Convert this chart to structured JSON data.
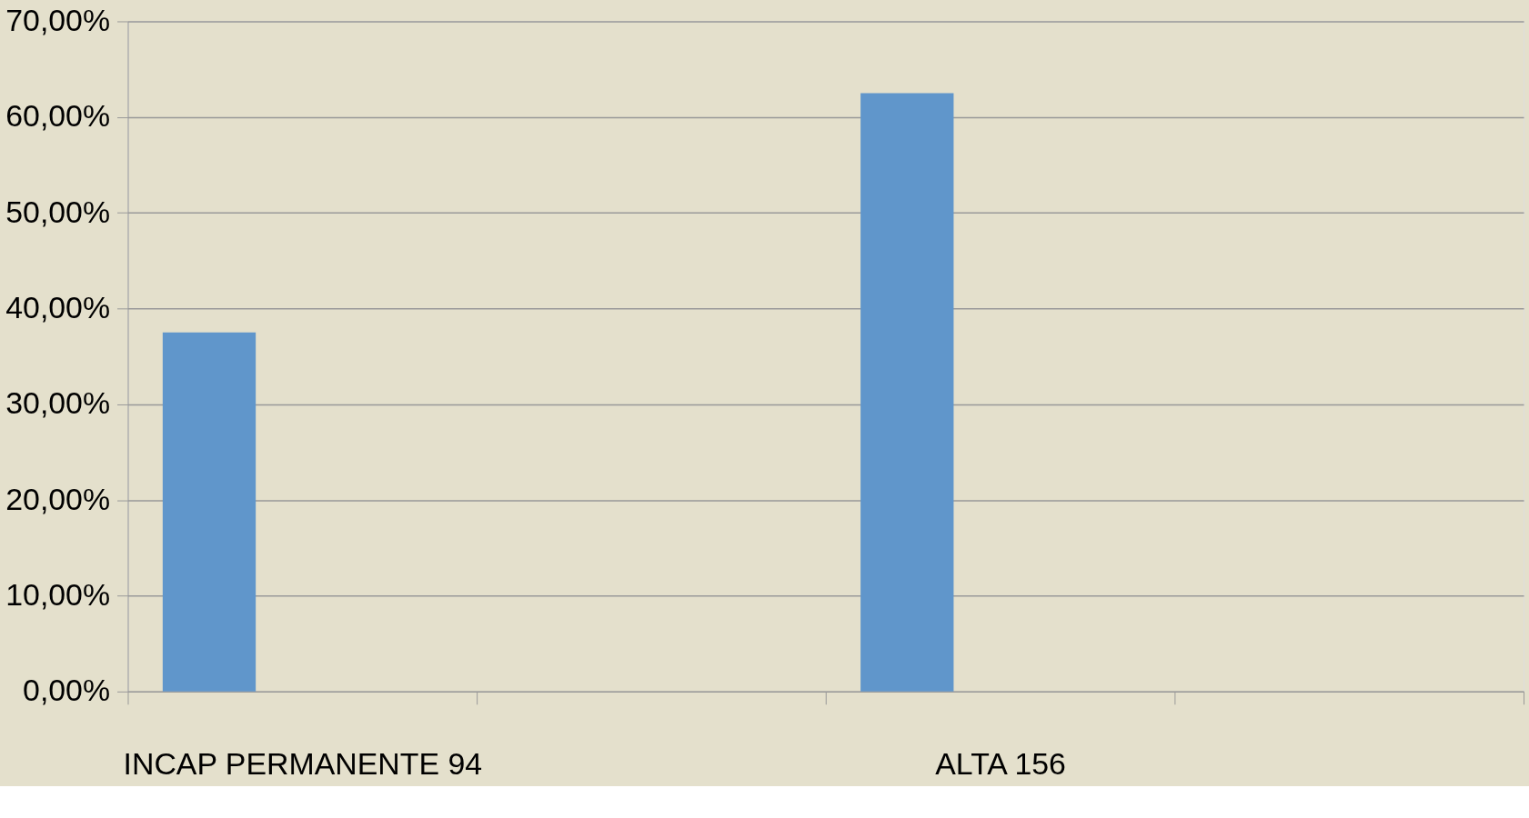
{
  "chart_data": {
    "type": "bar",
    "categories": [
      "INCAP PERMANENTE 94",
      null,
      "ALTA 156",
      null
    ],
    "series": [
      {
        "color": "#6096cb",
        "values": [
          37.5,
          null,
          62.5,
          null
        ]
      }
    ],
    "ylim": [
      0,
      70
    ],
    "yticks": [
      {
        "value": 0,
        "label": "0,00%"
      },
      {
        "value": 10,
        "label": "10,00%"
      },
      {
        "value": 20,
        "label": "20,00%"
      },
      {
        "value": 30,
        "label": "30,00%"
      },
      {
        "value": 40,
        "label": "40,00%"
      },
      {
        "value": 50,
        "label": "50,00%"
      },
      {
        "value": 60,
        "label": "60,00%"
      },
      {
        "value": 70,
        "label": "70,00%"
      }
    ],
    "grid": "y"
  }
}
